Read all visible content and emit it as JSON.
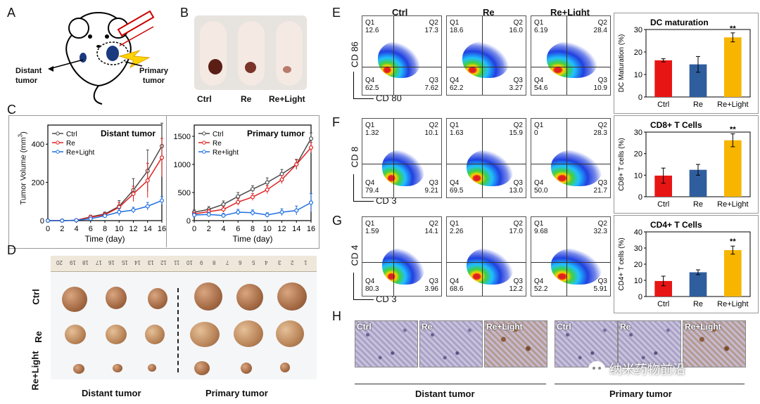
{
  "panel_labels": {
    "a": "A",
    "b": "B",
    "c": "C",
    "d": "D",
    "e": "E",
    "f": "F",
    "g": "G",
    "h": "H"
  },
  "panel_a": {
    "distant": "Distant\ntumor",
    "distant_l1": "Distant",
    "distant_l2": "tumor",
    "primary_l1": "Primary",
    "primary_l2": "tumor"
  },
  "panel_b": {
    "labels": [
      "Ctrl",
      "Re",
      "Re+Light"
    ]
  },
  "panel_c": {
    "ylabel": "Tumor Volume (mm",
    "ylabel_sup": "3",
    "ylabel_close": ")",
    "xlabel": "Time (day)",
    "left_title": "Distant tumor",
    "right_title": "Primary tumor"
  },
  "panel_d": {
    "rows": [
      "Ctrl",
      "Re",
      "Re+Light"
    ],
    "distant": "Distant tumor",
    "primary": "Primary tumor",
    "ruler_numbers": [
      "20",
      "19",
      "18",
      "17",
      "16",
      "15",
      "14",
      "13",
      "12",
      "11",
      "10",
      "9",
      "8",
      "7",
      "6",
      "5",
      "4",
      "3",
      "2",
      "1"
    ]
  },
  "flow": {
    "columns": [
      "Ctrl",
      "Re",
      "Re+Light"
    ],
    "rows": [
      {
        "panel": "E",
        "ylabel": "CD 86",
        "xlabel": "CD 80",
        "cells": [
          {
            "q1": "12.6",
            "q2": "17.3",
            "q4": "62.5",
            "q3": "7.62"
          },
          {
            "q1": "18.6",
            "q2": "16.0",
            "q4": "62.2",
            "q3": "3.27"
          },
          {
            "q1": "6.19",
            "q2": "28.4",
            "q4": "54.6",
            "q3": "10.9"
          }
        ]
      },
      {
        "panel": "F",
        "ylabel": "CD 8",
        "xlabel": "CD 3",
        "cells": [
          {
            "q1": "1.32",
            "q2": "10.1",
            "q4": "79.4",
            "q3": "9.21"
          },
          {
            "q1": "1.63",
            "q2": "15.9",
            "q4": "69.5",
            "q3": "13.0"
          },
          {
            "q1": "0",
            "q2": "28.3",
            "q4": "50.0",
            "q3": "21.7"
          }
        ]
      },
      {
        "panel": "G",
        "ylabel": "CD 4",
        "xlabel": "CD 3",
        "cells": [
          {
            "q1": "1.59",
            "q2": "14.1",
            "q4": "80.3",
            "q3": "3.96"
          },
          {
            "q1": "2.26",
            "q2": "17.0",
            "q4": "68.6",
            "q3": "12.2"
          },
          {
            "q1": "9.68",
            "q2": "32.3",
            "q4": "52.2",
            "q3": "5.91"
          }
        ]
      }
    ],
    "qnames": {
      "q1": "Q1",
      "q2": "Q2",
      "q3": "Q3",
      "q4": "Q4"
    }
  },
  "panel_h": {
    "labels": [
      "Ctrl",
      "Re",
      "Re+Light",
      "Ctrl",
      "Re",
      "Re+Light"
    ],
    "distant": "Distant tumor",
    "primary": "Primary tumor"
  },
  "watermark": "纳米药物前沿",
  "colors": {
    "ctrl": "#4a4a4a",
    "re": "#e02020",
    "light": "#1f6fe0",
    "bar_ctrl": "#e81515",
    "bar_re": "#2f5e9e",
    "bar_light": "#f7b500"
  },
  "chart_data": [
    {
      "type": "line",
      "title": "Distant tumor",
      "xlabel": "Time (day)",
      "ylabel": "Tumor Volume (mm3)",
      "x": [
        0,
        2,
        4,
        6,
        8,
        10,
        12,
        14,
        16
      ],
      "xlim": [
        0,
        16
      ],
      "ylim": [
        0,
        500
      ],
      "yticks": [
        0,
        200,
        400
      ],
      "series": [
        {
          "name": "Ctrl",
          "values": [
            0,
            0,
            2,
            20,
            35,
            75,
            160,
            260,
            390
          ],
          "err": [
            0,
            0,
            2,
            8,
            10,
            30,
            60,
            110,
            120
          ]
        },
        {
          "name": "Re",
          "values": [
            0,
            0,
            2,
            18,
            30,
            70,
            140,
            210,
            330
          ],
          "err": [
            0,
            0,
            2,
            8,
            10,
            25,
            40,
            90,
            100
          ]
        },
        {
          "name": "Re+Light",
          "values": [
            0,
            0,
            2,
            10,
            25,
            45,
            55,
            75,
            105
          ],
          "err": [
            0,
            0,
            2,
            6,
            8,
            20,
            15,
            20,
            20
          ]
        }
      ]
    },
    {
      "type": "line",
      "title": "Primary tumor",
      "xlabel": "Time (day)",
      "ylabel": "Tumor Volume (mm3)",
      "x": [
        0,
        2,
        4,
        6,
        8,
        10,
        12,
        14,
        16
      ],
      "xlim": [
        0,
        16
      ],
      "ylim": [
        0,
        1700
      ],
      "yticks": [
        0,
        500,
        1000,
        1500
      ],
      "series": [
        {
          "name": "Ctrl",
          "values": [
            150,
            200,
            290,
            430,
            560,
            680,
            830,
            1000,
            1460
          ],
          "err": [
            40,
            50,
            60,
            70,
            60,
            80,
            80,
            90,
            100
          ]
        },
        {
          "name": "Re",
          "values": [
            120,
            160,
            200,
            330,
            420,
            550,
            730,
            1000,
            1300
          ],
          "err": [
            30,
            40,
            50,
            60,
            60,
            70,
            70,
            80,
            90
          ]
        },
        {
          "name": "Re+light",
          "values": [
            100,
            110,
            90,
            150,
            140,
            100,
            150,
            180,
            320
          ],
          "err": [
            30,
            40,
            40,
            50,
            50,
            40,
            60,
            80,
            160
          ]
        }
      ]
    },
    {
      "type": "bar",
      "title": "DC maturation",
      "ylabel": "DC Maturation (%)",
      "categories": [
        "Ctrl",
        "Re",
        "Re+Light"
      ],
      "values": [
        16.3,
        14.5,
        26.5
      ],
      "err": [
        0.7,
        3.5,
        2
      ],
      "ylim": [
        0,
        30
      ],
      "yticks": [
        0,
        10,
        20,
        30
      ],
      "annotation": "**"
    },
    {
      "type": "bar",
      "title": "CD8+ T Cells",
      "ylabel": "CD8+ T cells (%)",
      "categories": [
        "Ctrl",
        "Re",
        "Re+Light"
      ],
      "values": [
        9.8,
        12.5,
        26.2
      ],
      "err": [
        3.5,
        2.5,
        3
      ],
      "ylim": [
        0,
        30
      ],
      "yticks": [
        0,
        10,
        20,
        30
      ],
      "annotation": "**"
    },
    {
      "type": "bar",
      "title": "CD4+ T Cells",
      "ylabel": "CD4+ T cells (%)",
      "categories": [
        "Ctrl",
        "Re",
        "Re+Light"
      ],
      "values": [
        9.6,
        15,
        28.7
      ],
      "err": [
        3,
        1.5,
        2.5
      ],
      "ylim": [
        0,
        40
      ],
      "yticks": [
        0,
        10,
        20,
        30,
        40
      ],
      "annotation": "**"
    }
  ]
}
